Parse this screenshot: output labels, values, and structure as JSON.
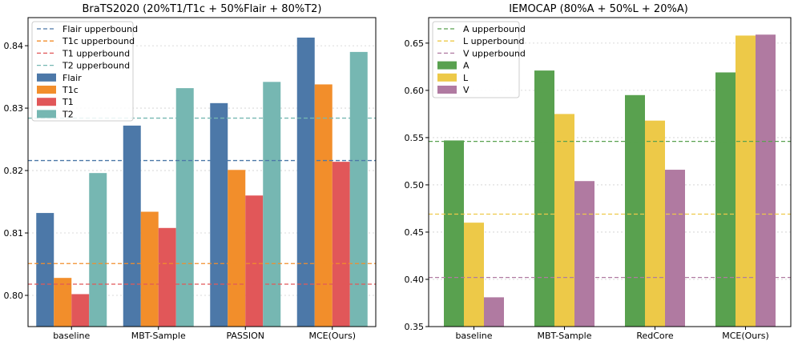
{
  "chart_data": [
    {
      "type": "bar",
      "title": "BraTS2020 (20%T1/T1c + 50%Flair + 80%T2)",
      "xlabel": "",
      "ylabel": "",
      "ylim": [
        0.795,
        0.8445
      ],
      "yticks": [
        0.8,
        0.81,
        0.82,
        0.83,
        0.84
      ],
      "ytick_labels": [
        "0.80",
        "0.81",
        "0.82",
        "0.83",
        "0.84"
      ],
      "categories": [
        "baseline",
        "MBT-Sample",
        "PASSION",
        "MCE(Ours)"
      ],
      "series": [
        {
          "name": "Flair",
          "color": "#4c78a8",
          "values": [
            0.8132,
            0.8272,
            0.8308,
            0.8413
          ]
        },
        {
          "name": "T1c",
          "color": "#f28e2b",
          "values": [
            0.8028,
            0.8134,
            0.8201,
            0.8338
          ]
        },
        {
          "name": "T1",
          "color": "#e15759",
          "values": [
            0.8002,
            0.8108,
            0.816,
            0.8214
          ]
        },
        {
          "name": "T2",
          "color": "#76b7b2",
          "values": [
            0.8196,
            0.8332,
            0.8342,
            0.839
          ]
        }
      ],
      "hlines": [
        {
          "name": "Flair upperbound",
          "color": "#4c78a8",
          "value": 0.8216
        },
        {
          "name": "T1c upperbound",
          "color": "#f28e2b",
          "value": 0.8051
        },
        {
          "name": "T1 upperbound",
          "color": "#e15759",
          "value": 0.8018
        },
        {
          "name": "T2 upperbound",
          "color": "#76b7b2",
          "value": 0.8284
        }
      ],
      "legend": "top-left",
      "grid": "y-dotted"
    },
    {
      "type": "bar",
      "title": "IEMOCAP (80%A + 50%L + 20%A)",
      "xlabel": "",
      "ylabel": "",
      "ylim": [
        0.35,
        0.677
      ],
      "yticks": [
        0.35,
        0.4,
        0.45,
        0.5,
        0.55,
        0.6,
        0.65
      ],
      "ytick_labels": [
        "0.35",
        "0.40",
        "0.45",
        "0.50",
        "0.55",
        "0.60",
        "0.65"
      ],
      "categories": [
        "baseline",
        "MBT-Sample",
        "RedCore",
        "MCE(Ours)"
      ],
      "series": [
        {
          "name": "A",
          "color": "#59a14f",
          "values": [
            0.547,
            0.621,
            0.595,
            0.619
          ]
        },
        {
          "name": "L",
          "color": "#edc948",
          "values": [
            0.46,
            0.575,
            0.568,
            0.658
          ]
        },
        {
          "name": "V",
          "color": "#b07aa1",
          "values": [
            0.381,
            0.504,
            0.516,
            0.659
          ]
        }
      ],
      "hlines": [
        {
          "name": "A upperbound",
          "color": "#59a14f",
          "value": 0.546
        },
        {
          "name": "L upperbound",
          "color": "#edc948",
          "value": 0.469
        },
        {
          "name": "V upperbound",
          "color": "#b07aa1",
          "value": 0.402
        }
      ],
      "legend": "top-left",
      "grid": "y-dotted"
    }
  ]
}
